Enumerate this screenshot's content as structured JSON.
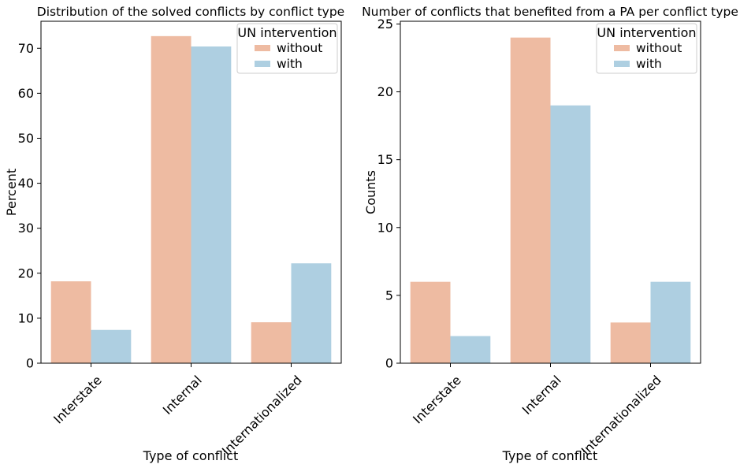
{
  "chart_data": [
    {
      "type": "bar",
      "title": "Distribution of the solved conflicts by conflict type",
      "xlabel": "Type of conflict",
      "ylabel": "Percent",
      "categories": [
        "Interstate",
        "Internal",
        "Internationalized"
      ],
      "series": [
        {
          "name": "without",
          "color": "#eebba2",
          "values": [
            18.2,
            72.7,
            9.1
          ]
        },
        {
          "name": "with",
          "color": "#aecfe1",
          "values": [
            7.4,
            70.4,
            22.2
          ]
        }
      ],
      "ylim": [
        0,
        76
      ],
      "yticks": [
        0,
        10,
        20,
        30,
        40,
        50,
        60,
        70
      ],
      "legend": {
        "title": "UN intervention",
        "placement": "upper right"
      },
      "grid": false
    },
    {
      "type": "bar",
      "title": "Number of conflicts that benefited from a PA per conflict type",
      "xlabel": "Type of conflict",
      "ylabel": "Counts",
      "categories": [
        "Interstate",
        "Internal",
        "Internationalized"
      ],
      "series": [
        {
          "name": "without",
          "color": "#eebba2",
          "values": [
            6,
            24,
            3
          ]
        },
        {
          "name": "with",
          "color": "#aecfe1",
          "values": [
            2,
            19,
            6
          ]
        }
      ],
      "ylim": [
        0,
        25.2
      ],
      "yticks": [
        0,
        5,
        10,
        15,
        20,
        25
      ],
      "legend": {
        "title": "UN intervention",
        "placement": "upper right"
      },
      "grid": false
    }
  ]
}
